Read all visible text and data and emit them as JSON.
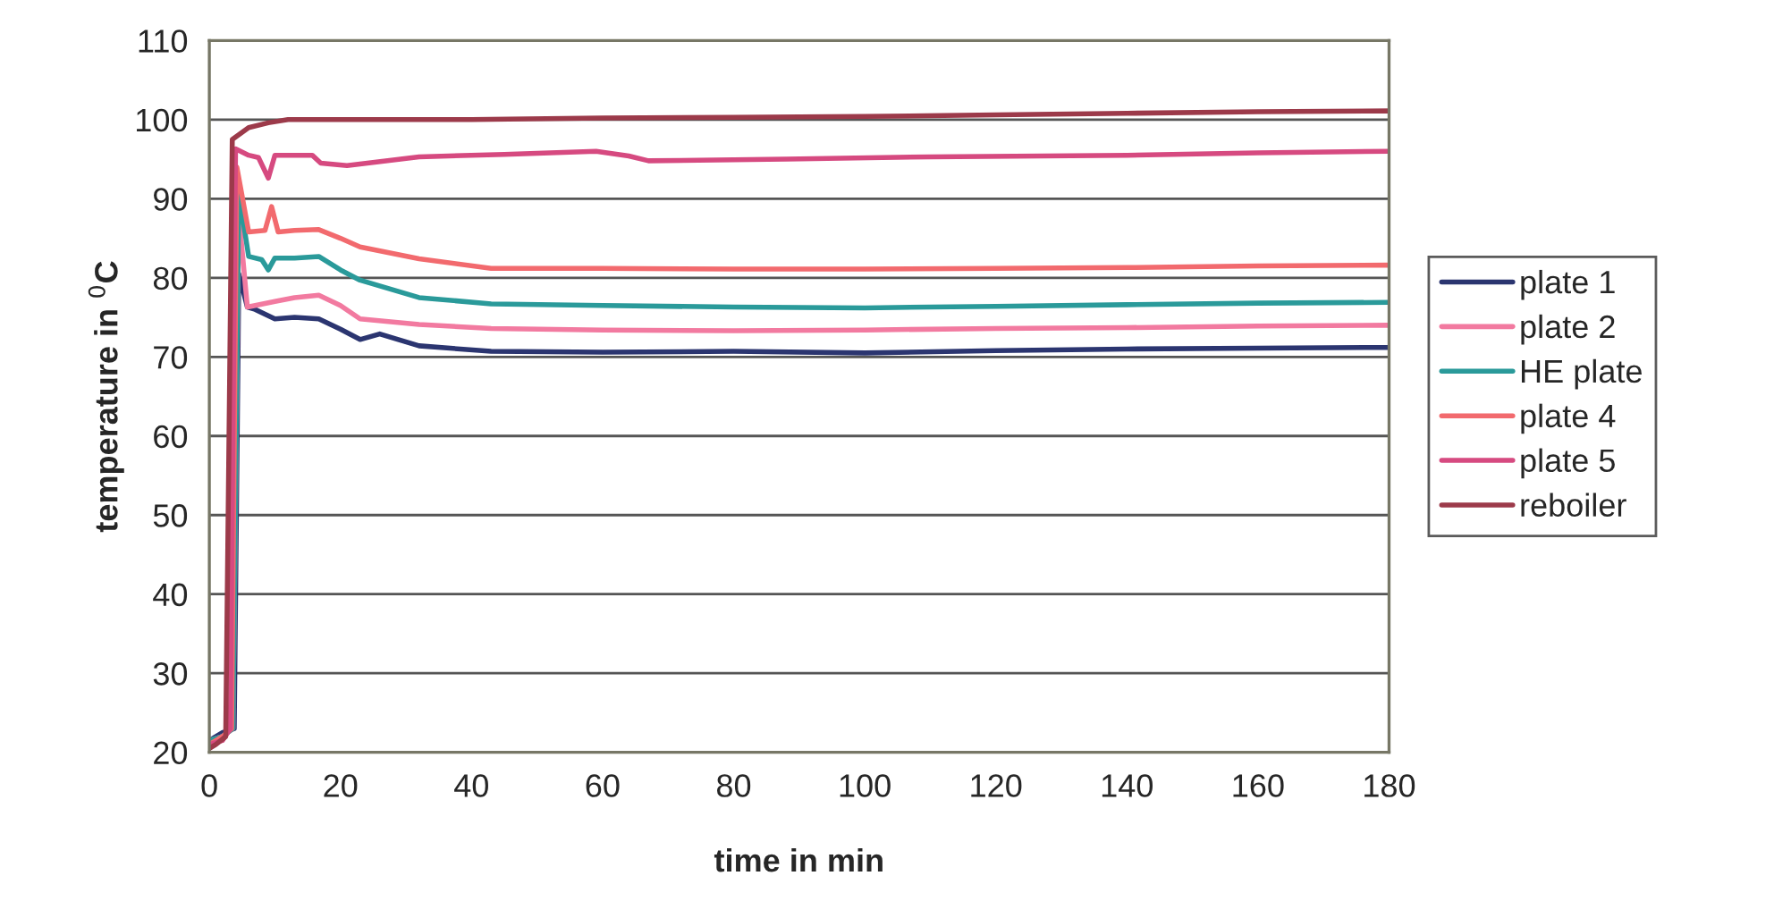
{
  "chart_data": {
    "type": "line",
    "xlabel": "time in min",
    "ylabel": "temperature in $^{0}$C",
    "xlim": [
      0,
      180
    ],
    "xticks": [
      0,
      20,
      40,
      60,
      80,
      100,
      120,
      140,
      160,
      180
    ],
    "ylim": [
      20,
      110
    ],
    "yticks": [
      20,
      30,
      40,
      50,
      60,
      70,
      80,
      90,
      100,
      110
    ],
    "grid": "y",
    "legend": "right",
    "marker": "none",
    "line_style": "solid",
    "series": [
      {
        "name": "plate 1",
        "color": "#2b3570",
        "x": [
          0,
          2,
          3.8,
          4.5,
          5.8,
          7,
          10,
          13,
          16.7,
          20,
          23,
          26,
          32,
          43,
          60,
          80,
          100,
          120,
          140,
          160,
          180
        ],
        "values": [
          21.5,
          22.5,
          23,
          80.5,
          76.3,
          76,
          74.8,
          75,
          74.8,
          73.5,
          72.2,
          72.9,
          71.4,
          70.7,
          70.6,
          70.7,
          70.5,
          70.8,
          71,
          71.1,
          71.2
        ]
      },
      {
        "name": "plate 2",
        "color": "#f27aa0",
        "x": [
          0,
          2,
          3.6,
          4.5,
          5.8,
          7,
          10,
          13,
          16.7,
          20,
          23,
          32,
          43,
          60,
          80,
          100,
          120,
          140,
          160,
          180
        ],
        "values": [
          21.5,
          22,
          23,
          88,
          76.3,
          76.5,
          77,
          77.5,
          77.8,
          76.5,
          74.8,
          74.1,
          73.6,
          73.4,
          73.3,
          73.4,
          73.6,
          73.7,
          73.9,
          74
        ]
      },
      {
        "name": "HE plate",
        "color": "#2a9a9a",
        "x": [
          0,
          2,
          3.6,
          4.5,
          6,
          8,
          9,
          10,
          13,
          16.7,
          20,
          23,
          32,
          43,
          60,
          80,
          100,
          120,
          140,
          160,
          180
        ],
        "values": [
          21.5,
          22,
          23,
          90.7,
          82.7,
          82.3,
          81,
          82.5,
          82.5,
          82.7,
          81,
          79.7,
          77.5,
          76.7,
          76.5,
          76.3,
          76.2,
          76.4,
          76.6,
          76.8,
          76.9
        ]
      },
      {
        "name": "plate 4",
        "color": "#f26a6e",
        "x": [
          0,
          2,
          3.4,
          4.2,
          6,
          8.5,
          9.5,
          10.5,
          13,
          16.7,
          20,
          23,
          32,
          43,
          60,
          80,
          100,
          120,
          140,
          160,
          180
        ],
        "values": [
          21,
          22,
          23,
          94,
          85.8,
          86,
          89,
          85.8,
          86,
          86.1,
          85,
          83.9,
          82.4,
          81.2,
          81.2,
          81.1,
          81.1,
          81.2,
          81.3,
          81.5,
          81.6
        ]
      },
      {
        "name": "plate 5",
        "color": "#d64a80",
        "x": [
          0,
          2,
          3.2,
          4,
          6,
          7.5,
          9,
          10,
          15.7,
          17,
          21,
          32,
          45,
          59,
          64,
          67,
          88,
          110,
          140,
          160,
          180
        ],
        "values": [
          21,
          21.5,
          23,
          96.3,
          95.5,
          95.2,
          92.6,
          95.5,
          95.5,
          94.5,
          94.2,
          95.3,
          95.6,
          96,
          95.4,
          94.8,
          95,
          95.3,
          95.5,
          95.8,
          96
        ]
      },
      {
        "name": "reboiler",
        "color": "#9c3a4a",
        "x": [
          0,
          1,
          2.5,
          3.5,
          6,
          9,
          12,
          20,
          40,
          60,
          80,
          100,
          120,
          140,
          160,
          180
        ],
        "values": [
          20.5,
          21,
          22,
          97.5,
          99,
          99.6,
          100,
          100,
          100,
          100.2,
          100.3,
          100.4,
          100.6,
          100.8,
          101,
          101.1
        ]
      }
    ]
  }
}
